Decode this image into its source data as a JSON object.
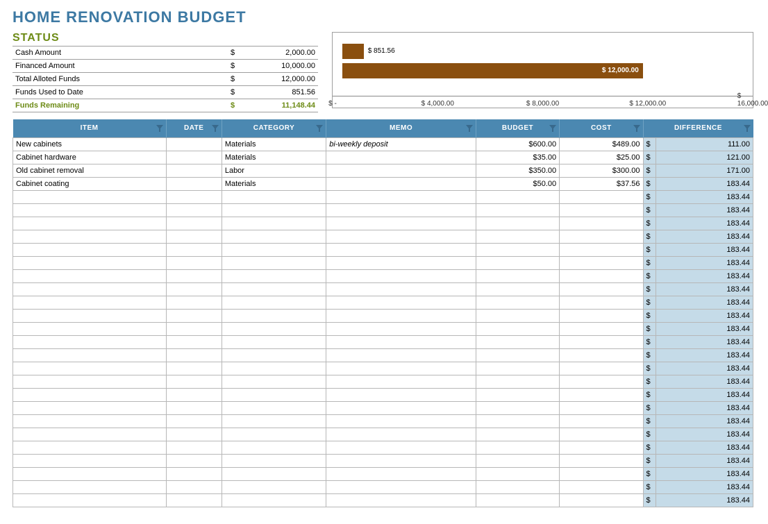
{
  "title": "HOME RENOVATION BUDGET",
  "status": {
    "heading": "STATUS",
    "rows": [
      {
        "label": "Cash Amount",
        "sym": "$",
        "value": "2,000.00"
      },
      {
        "label": "Financed Amount",
        "sym": "$",
        "value": "10,000.00"
      },
      {
        "label": "Total Alloted Funds",
        "sym": "$",
        "value": "12,000.00"
      },
      {
        "label": "Funds Used to Date",
        "sym": "$",
        "value": "851.56"
      },
      {
        "label": "Funds Remaining",
        "sym": "$",
        "value": "11,148.44",
        "highlight": true
      }
    ]
  },
  "chart": {
    "type": "horizontal-bar",
    "x_min": 0,
    "x_max": 16000,
    "ticks": [
      {
        "pos": 0,
        "label": "$ -"
      },
      {
        "pos": 4000,
        "label": "$ 4,000.00"
      },
      {
        "pos": 8000,
        "label": "$ 8,000.00"
      },
      {
        "pos": 12000,
        "label": "$ 12,000.00"
      },
      {
        "pos": 16000,
        "label": "$ 16,000.00"
      }
    ],
    "bars": [
      {
        "value": 851.56,
        "label": "$ 851.56",
        "color": "#8a4f0f",
        "label_side": "right"
      },
      {
        "value": 12000,
        "label": "$ 12,000.00",
        "color": "#8a4f0f",
        "label_side": "inside"
      }
    ],
    "border_color": "#9e9e9e",
    "axis_color": "#888888"
  },
  "columns": [
    {
      "key": "item",
      "label": "ITEM"
    },
    {
      "key": "date",
      "label": "DATE"
    },
    {
      "key": "category",
      "label": "CATEGORY"
    },
    {
      "key": "memo",
      "label": "MEMO"
    },
    {
      "key": "budget",
      "label": "BUDGET"
    },
    {
      "key": "cost",
      "label": "COST"
    },
    {
      "key": "difference",
      "label": "DIFFERENCE"
    }
  ],
  "header_bg": "#4b88b1",
  "header_fg": "#ffffff",
  "diff_bg": "#c5dbe8",
  "grid_color": "#b7b7b7",
  "rows": [
    {
      "item": "New cabinets",
      "date": "",
      "category": "Materials",
      "memo": "bi-weekly deposit",
      "budget": "$600.00",
      "cost": "$489.00",
      "diff_sym": "$",
      "diff": "111.00"
    },
    {
      "item": "Cabinet hardware",
      "date": "",
      "category": "Materials",
      "memo": "",
      "budget": "$35.00",
      "cost": "$25.00",
      "diff_sym": "$",
      "diff": "121.00"
    },
    {
      "item": "Old cabinet removal",
      "date": "",
      "category": "Labor",
      "memo": "",
      "budget": "$350.00",
      "cost": "$300.00",
      "diff_sym": "$",
      "diff": "171.00"
    },
    {
      "item": "Cabinet coating",
      "date": "",
      "category": "Materials",
      "memo": "",
      "budget": "$50.00",
      "cost": "$37.56",
      "diff_sym": "$",
      "diff": "183.44"
    }
  ],
  "empty_row": {
    "item": "",
    "date": "",
    "category": "",
    "memo": "",
    "budget": "",
    "cost": "",
    "diff_sym": "$",
    "diff": "183.44"
  },
  "empty_row_count": 24
}
